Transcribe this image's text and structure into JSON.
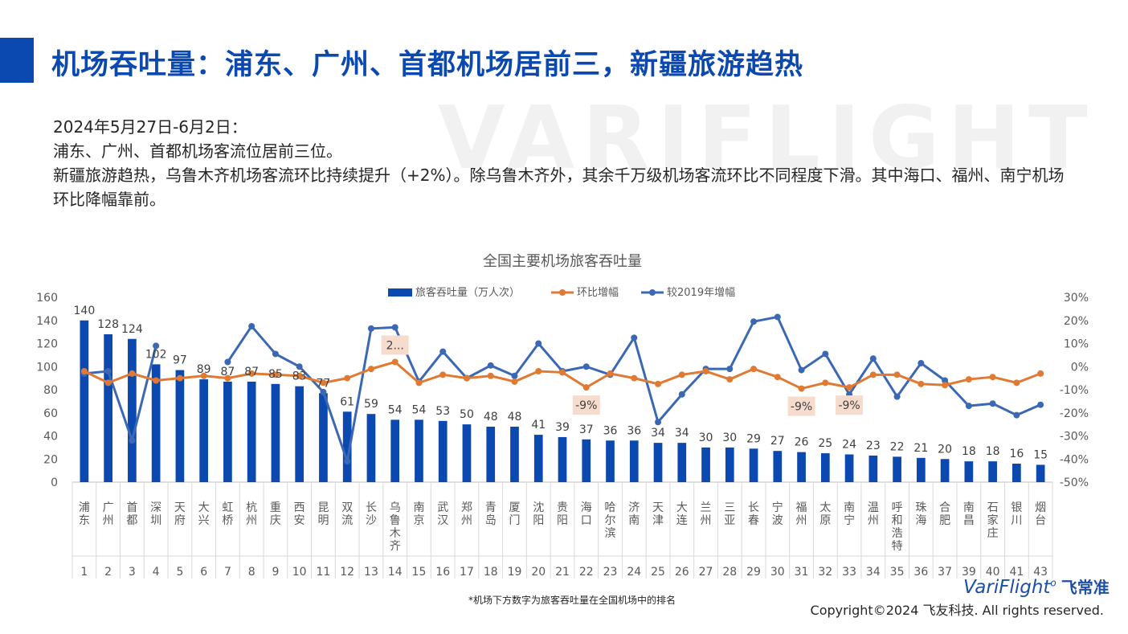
{
  "page": {
    "title": "机场吞吐量：浦东、广州、首都机场居前三，新疆旅游趋热",
    "watermark": "VARIFLIGHT",
    "desc": [
      "2024年5月27日-6月2日：",
      "浦东、广州、首都机场客流位居前三位。",
      "新疆旅游趋热，乌鲁木齐机场客流环比持续提升（+2%）。除乌鲁木齐外，其余千万级机场客流环比不同程度下滑。其中海口、福州、南宁机场环比降幅靠前。"
    ],
    "brand": "VariFlight",
    "brand_cn": "飞常准",
    "copyright": "Copyright©2024 飞友科技. All rights reserved.",
    "footnote": "*机场下方数字为旅客吞吐量在全国机场中的排名"
  },
  "chart_data": {
    "type": "bar+line",
    "title": "全国主要机场旅客吞吐量",
    "legend": [
      "旅客吞吐量（万人次）",
      "环比增幅",
      "较2019年增幅"
    ],
    "legend_position": "top-center",
    "categories": [
      "浦东",
      "广州",
      "首都",
      "深圳",
      "天府",
      "大兴",
      "虹桥",
      "杭州",
      "重庆",
      "西安",
      "昆明",
      "双流",
      "长沙",
      "乌鲁木齐",
      "南京",
      "武汉",
      "郑州",
      "青岛",
      "厦门",
      "沈阳",
      "贵阳",
      "海口",
      "哈尔滨",
      "济南",
      "天津",
      "大连",
      "兰州",
      "三亚",
      "长春",
      "宁波",
      "福州",
      "太原",
      "南宁",
      "温州",
      "呼和浩特",
      "珠海",
      "合肥",
      "南昌",
      "石家庄",
      "银川",
      "烟台"
    ],
    "ranks": [
      "1",
      "2",
      "3",
      "4",
      "5",
      "6",
      "7",
      "8",
      "9",
      "10",
      "11",
      "12",
      "13",
      "14",
      "15",
      "16",
      "17",
      "18",
      "19",
      "20",
      "21",
      "22",
      "23",
      "24",
      "25",
      "26",
      "27",
      "28",
      "29",
      "30",
      "31",
      "32",
      "33",
      "34",
      "35",
      "36",
      "37",
      "39",
      "40",
      "41",
      "43"
    ],
    "bar_values": [
      140,
      128,
      124,
      102,
      97,
      89,
      87,
      87,
      85,
      83,
      77,
      61,
      59,
      54,
      54,
      53,
      50,
      48,
      48,
      41,
      39,
      37,
      36,
      36,
      34,
      34,
      30,
      30,
      29,
      27,
      26,
      25,
      24,
      23,
      22,
      21,
      20,
      18,
      18,
      16,
      15
    ],
    "mom_pct": [
      -2,
      -7,
      -3,
      -6,
      -5,
      -4,
      -5,
      -3,
      -3.5,
      -4,
      -7,
      -5,
      -1,
      2,
      -7,
      -3.5,
      -5,
      -4,
      -6.5,
      -2,
      -2.5,
      -9,
      -3,
      -5,
      -7.5,
      -3.5,
      -2,
      -5.5,
      -1,
      -4.5,
      -9.5,
      -7,
      -9,
      -3.5,
      -3.5,
      -7.5,
      -8,
      -5.5,
      -4.5,
      -7,
      -3
    ],
    "vs2019_pct": [
      -3,
      -2,
      -32,
      9,
      null,
      null,
      2,
      17.5,
      5.5,
      0,
      -11,
      -41,
      16.5,
      17,
      -6.5,
      6.5,
      -5,
      0.5,
      -4,
      10,
      -2,
      0,
      -3.5,
      12.5,
      -24,
      -12,
      -1,
      -1,
      19.5,
      21.5,
      -1.5,
      5.5,
      -12,
      3.5,
      -13,
      1.5,
      -6,
      -17,
      -16,
      -21,
      -16.5
    ],
    "callouts": [
      {
        "index": 13,
        "series": "mom",
        "label": "2..."
      },
      {
        "index": 21,
        "series": "mom",
        "label": "-9%"
      },
      {
        "index": 30,
        "series": "mom",
        "label": "-9%"
      },
      {
        "index": 32,
        "series": "mom",
        "label": "-9%"
      }
    ],
    "y_left": {
      "min": 0,
      "max": 160,
      "ticks": [
        "0",
        "20",
        "40",
        "60",
        "80",
        "100",
        "120",
        "140",
        "160"
      ]
    },
    "y_right": {
      "min": -50,
      "max": 30,
      "ticks": [
        "-50%",
        "-40%",
        "-30%",
        "-20%",
        "-10%",
        "0%",
        "10%",
        "20%",
        "30%"
      ]
    },
    "colors": {
      "bar": "#0b49b0",
      "mom": "#e07a33",
      "vs2019": "#3b68b5",
      "callout_bg": "#f6dccd"
    }
  }
}
